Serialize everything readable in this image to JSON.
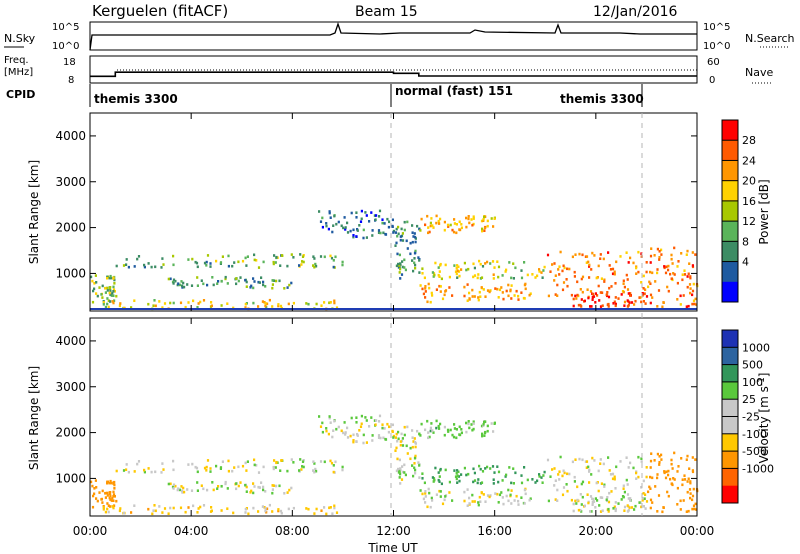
{
  "header": {
    "station": "Kerguelen (fitACF)",
    "beam": "Beam 15",
    "date": "12/Jan/2016"
  },
  "panels": {
    "sky_label": "N.Sky",
    "search_label": "N.Search",
    "freq_label_1": "Freq.",
    "freq_label_2": "[MHz]",
    "nave_label": "Nave",
    "cpid_label": "CPID",
    "sky_ticks": [
      "10^5",
      "10^0"
    ],
    "search_ticks": [
      "10^5",
      "10^0"
    ],
    "freq_ticks": [
      "18",
      "8"
    ],
    "nave_ticks": [
      "60",
      "0"
    ]
  },
  "cpid_segments": [
    {
      "label": "themis 3300",
      "start_hour": 0,
      "end_hour": 12
    },
    {
      "label": "normal (fast) 151",
      "start_hour": 12,
      "end_hour": 22
    },
    {
      "label": "themis 3300",
      "start_hour": 22,
      "end_hour": 24
    }
  ],
  "colorbars": {
    "power": {
      "label": "Power [dB]",
      "ticks": [
        "28",
        "24",
        "20",
        "16",
        "12",
        "8",
        "4"
      ],
      "colors": [
        "#ff0000",
        "#ff5a00",
        "#ff9600",
        "#ffd200",
        "#a8c800",
        "#5ab45a",
        "#3c8c64",
        "#1e5aa0",
        "#0000ff"
      ]
    },
    "velocity": {
      "label": "Velocity [m s",
      "label_sup": "-1",
      "label_end": "]",
      "ticks": [
        "1000",
        "500",
        "100",
        "25",
        "-25",
        "-100",
        "-500",
        "-1000"
      ],
      "colors": [
        "#1e32b4",
        "#2d64a0",
        "#32965a",
        "#5ac83c",
        "#c8c8c8",
        "#c8c8c8",
        "#ffc800",
        "#ff9600",
        "#ff6400",
        "#ff0000"
      ]
    }
  },
  "chart_data": {
    "type": "heatmap",
    "xlabel": "Time UT",
    "ylabel": "Slant Range [km]",
    "x_ticks": [
      "00:00",
      "04:00",
      "08:00",
      "12:00",
      "16:00",
      "20:00",
      "00:00"
    ],
    "xlim_hours": [
      0,
      24
    ],
    "ylim_km": [
      180,
      4500
    ],
    "y_ticks": [
      1000,
      2000,
      3000,
      4000
    ],
    "frequency_mhz": [
      {
        "start": 0,
        "end": 1,
        "value": 10.5
      },
      {
        "start": 1,
        "end": 12,
        "value": 12.0
      },
      {
        "start": 12,
        "end": 13,
        "value": 11.6
      },
      {
        "start": 13,
        "end": 24,
        "value": 10.6
      }
    ],
    "nave_approx": 40,
    "scatter_regions": [
      {
        "t0": 0.0,
        "t1": 1.0,
        "r0": 400,
        "r1": 1000,
        "power_db": 14,
        "velocity": -300
      },
      {
        "t0": 1.0,
        "t1": 10.0,
        "r0": 1150,
        "r1": 1450,
        "power_db": 12,
        "velocity": 0
      },
      {
        "t0": 3.0,
        "t1": 8.0,
        "r0": 700,
        "r1": 950,
        "power_db": 10,
        "velocity": 0
      },
      {
        "t0": 0.5,
        "t1": 10.0,
        "r0": 250,
        "r1": 450,
        "power_db": 18,
        "velocity": -50
      },
      {
        "t0": 9.0,
        "t1": 12.0,
        "r0": 1800,
        "r1": 2400,
        "power_db": 8,
        "velocity": 0
      },
      {
        "t0": 12.0,
        "t1": 13.0,
        "r0": 900,
        "r1": 2200,
        "power_db": 10,
        "velocity": 0
      },
      {
        "t0": 13.0,
        "t1": 16.0,
        "r0": 1900,
        "r1": 2300,
        "power_db": 20,
        "velocity": 50
      },
      {
        "t0": 13.0,
        "t1": 18.0,
        "r0": 900,
        "r1": 1300,
        "power_db": 16,
        "velocity": 100
      },
      {
        "t0": 13.0,
        "t1": 17.5,
        "r0": 400,
        "r1": 800,
        "power_db": 22,
        "velocity": 0
      },
      {
        "t0": 18.0,
        "t1": 22.0,
        "r0": 500,
        "r1": 1500,
        "power_db": 24,
        "velocity": 0
      },
      {
        "t0": 19.0,
        "t1": 22.0,
        "r0": 300,
        "r1": 600,
        "power_db": 28,
        "velocity": 0
      },
      {
        "t0": 22.0,
        "t1": 24.0,
        "r0": 300,
        "r1": 1600,
        "power_db": 24,
        "velocity": -400
      }
    ]
  }
}
